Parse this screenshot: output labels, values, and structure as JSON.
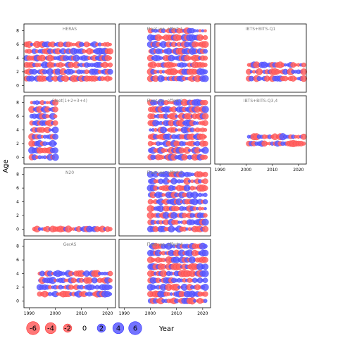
{
  "chart_data": {
    "type": "scatter",
    "title": "",
    "xlabel": "Year",
    "ylabel": "Age",
    "xlim": [
      1988,
      2023
    ],
    "ylim": [
      -1,
      9
    ],
    "x_ticks": [
      1990,
      2000,
      2010,
      2020
    ],
    "y_ticks": [
      0,
      2,
      4,
      6,
      8
    ],
    "grid": false,
    "colors": {
      "positive": "#5a5aff",
      "negative": "#ff5f5f",
      "positive_stroke": "#3030ff",
      "negative_stroke": "#ff3030"
    },
    "legend": {
      "placement": "bottom-left",
      "values": [
        -6,
        -4,
        -2,
        0,
        2,
        4,
        6
      ],
      "labels": [
        "-6",
        "-4",
        "-2",
        "0",
        "2",
        "4",
        "6"
      ]
    },
    "panels": [
      {
        "name": "HERAS",
        "years": [
          1989,
          2021
        ],
        "ages": [
          1,
          2,
          3,
          4,
          5,
          6
        ]
      },
      {
        "name": "Fleet wo. effort 1",
        "years": [
          2000,
          2021
        ],
        "ages": [
          1,
          2,
          3,
          4,
          5,
          6,
          7,
          8
        ]
      },
      {
        "name": "IBTS+BITS-Q1",
        "years": [
          2001,
          2022
        ],
        "ages": [
          1,
          2,
          3
        ]
      },
      {
        "name": "Fleet(1+2+3+4)",
        "years": [
          1991,
          2000
        ],
        "ages": [
          0,
          1,
          2,
          3,
          4,
          5,
          6,
          7,
          8
        ]
      },
      {
        "name": "Fleet wo. effort 2",
        "years": [
          2000,
          2021
        ],
        "ages": [
          0,
          1,
          2,
          3,
          4,
          5,
          6,
          7,
          8
        ]
      },
      {
        "name": "IBTS+BITS-Q3,4",
        "years": [
          2001,
          2022
        ],
        "ages": [
          2,
          3
        ]
      },
      {
        "name": "N20",
        "years": [
          1992,
          2021
        ],
        "ages": [
          0
        ]
      },
      {
        "name": "Fleet wo. effort 3",
        "years": [
          2000,
          2021
        ],
        "ages": [
          0,
          1,
          2,
          3,
          4,
          5,
          6,
          7,
          8
        ]
      },
      {
        "name": "GerAS",
        "years": [
          1994,
          2021
        ],
        "ages": [
          1,
          2,
          3,
          4
        ]
      },
      {
        "name": "Fleet wo. effort 4",
        "years": [
          2000,
          2021
        ],
        "ages": [
          0,
          1,
          2,
          3,
          4,
          5,
          6,
          7,
          8
        ]
      }
    ]
  }
}
